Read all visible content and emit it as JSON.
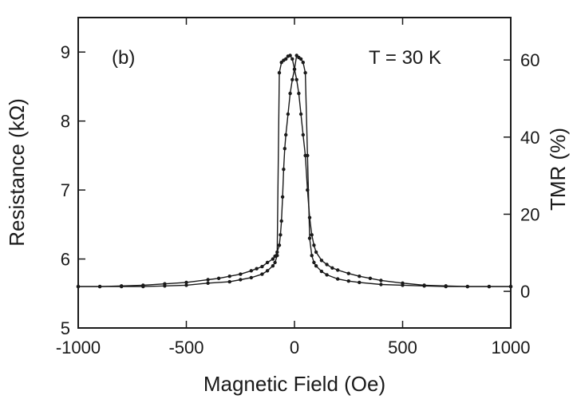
{
  "chart_data": {
    "type": "line",
    "panel_label": "(b)",
    "annotation": "T = 30 K",
    "xlabel": "Magnetic Field (Oe)",
    "ylabel": "Resistance (kΩ)",
    "y2label": "TMR (%)",
    "xlim": [
      -1000,
      1000
    ],
    "ylim": [
      5,
      9.5
    ],
    "y2lim": [
      -9.5,
      71
    ],
    "x_ticks": [
      -1000,
      -500,
      0,
      500,
      1000
    ],
    "x_tick_labels": [
      "-1000",
      "-500",
      "0",
      "500",
      "1000"
    ],
    "y_ticks": [
      5,
      6,
      7,
      8,
      9
    ],
    "y_tick_labels": [
      "5",
      "6",
      "7",
      "8",
      "9"
    ],
    "y2_ticks": [
      0,
      20,
      40,
      60
    ],
    "y2_tick_labels": [
      "0",
      "20",
      "40",
      "60"
    ],
    "grid": false,
    "series": [
      {
        "x": [
          -1000,
          -900,
          -800,
          -700,
          -600,
          -500,
          -400,
          -350,
          -300,
          -250,
          -200,
          -175,
          -150,
          -125,
          -100,
          -90,
          -80,
          -70,
          -65,
          -60,
          -55,
          -50,
          -45,
          -40,
          -30,
          -20,
          -10,
          0,
          10,
          20,
          30,
          40,
          50,
          60,
          70,
          80,
          90,
          100,
          125,
          150,
          200,
          250,
          300,
          400,
          500,
          600,
          700,
          800,
          900,
          1000
        ],
        "y": [
          5.6,
          5.6,
          5.61,
          5.62,
          5.64,
          5.66,
          5.7,
          5.72,
          5.75,
          5.78,
          5.83,
          5.86,
          5.89,
          5.95,
          6.0,
          6.04,
          6.1,
          6.2,
          6.35,
          6.55,
          6.9,
          7.3,
          7.6,
          7.8,
          8.1,
          8.4,
          8.6,
          8.75,
          8.95,
          8.92,
          8.9,
          8.85,
          8.7,
          7.5,
          6.3,
          6.05,
          5.95,
          5.9,
          5.82,
          5.77,
          5.71,
          5.68,
          5.66,
          5.63,
          5.62,
          5.61,
          5.6,
          5.6,
          5.6,
          5.6
        ]
      },
      {
        "x": [
          -1000,
          -900,
          -800,
          -700,
          -600,
          -500,
          -400,
          -300,
          -250,
          -200,
          -150,
          -125,
          -100,
          -90,
          -80,
          -70,
          -60,
          -50,
          -40,
          -30,
          -20,
          -10,
          0,
          10,
          20,
          30,
          40,
          50,
          60,
          70,
          80,
          90,
          100,
          125,
          150,
          175,
          200,
          250,
          300,
          350,
          400,
          500,
          600,
          700,
          800,
          900,
          1000
        ],
        "y": [
          5.6,
          5.6,
          5.6,
          5.6,
          5.61,
          5.62,
          5.65,
          5.67,
          5.7,
          5.73,
          5.78,
          5.83,
          5.9,
          5.95,
          6.05,
          8.7,
          8.85,
          8.88,
          8.9,
          8.94,
          8.95,
          8.9,
          8.75,
          8.6,
          8.4,
          8.1,
          7.8,
          7.5,
          7.0,
          6.6,
          6.35,
          6.2,
          6.1,
          5.98,
          5.92,
          5.87,
          5.84,
          5.79,
          5.75,
          5.72,
          5.69,
          5.65,
          5.62,
          5.61,
          5.6,
          5.6,
          5.6
        ]
      }
    ]
  }
}
